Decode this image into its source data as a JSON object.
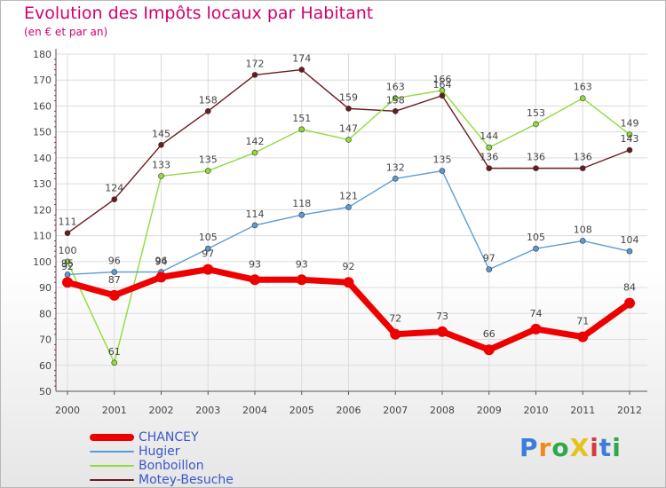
{
  "header": {
    "title": "Evolution des Impôts locaux par Habitant",
    "subtitle": "(en € et par an)"
  },
  "chart_data": {
    "type": "line",
    "title": "Evolution des Impôts locaux par Habitant",
    "subtitle": "(en € et par an)",
    "xlabel": "",
    "ylabel": "",
    "x": [
      "2000",
      "2001",
      "2002",
      "2003",
      "2004",
      "2005",
      "2006",
      "2007",
      "2008",
      "2009",
      "2010",
      "2011",
      "2012"
    ],
    "ylim": [
      50,
      180
    ],
    "yticks": [
      50,
      60,
      70,
      80,
      90,
      100,
      110,
      120,
      130,
      140,
      150,
      160,
      170,
      180
    ],
    "grid": true,
    "legend_position": "bottom-left",
    "series": [
      {
        "name": "Motey-Besuche",
        "color": "#6b1a1f",
        "values": [
          111,
          124,
          145,
          158,
          172,
          174,
          159,
          158,
          164,
          136,
          136,
          136,
          143
        ],
        "labels": [
          "111",
          "124",
          "145",
          "158",
          "172",
          "174",
          "159",
          "158",
          "164",
          "136",
          "136",
          "136",
          "143"
        ]
      },
      {
        "name": "Bonboillon",
        "color": "#8fdc3c",
        "values": [
          100,
          61,
          133,
          135,
          142,
          151,
          147,
          163,
          166,
          144,
          153,
          163,
          149
        ],
        "labels": [
          "100",
          "61",
          "133",
          "135",
          "142",
          "151",
          "147",
          "163",
          "166",
          "144",
          "153",
          "163",
          "149"
        ]
      },
      {
        "name": "Hugier",
        "color": "#5b9bd5",
        "values": [
          95,
          96,
          96,
          105,
          114,
          118,
          121,
          132,
          135,
          97,
          105,
          108,
          104
        ],
        "labels": [
          "95",
          "96",
          "96",
          "105",
          "114",
          "118",
          "121",
          "132",
          "135",
          "97",
          "105",
          "108",
          "104"
        ]
      },
      {
        "name": "CHANCEY",
        "color": "#ee0000",
        "values": [
          92,
          87,
          94,
          97,
          93,
          93,
          92,
          72,
          73,
          66,
          74,
          71,
          84
        ],
        "labels": [
          "92",
          "87",
          "94",
          "97",
          "93",
          "93",
          "92",
          "72",
          "73",
          "66",
          "74",
          "71",
          "84"
        ]
      }
    ]
  },
  "legend": [
    {
      "name": "CHANCEY",
      "color": "#ee0000"
    },
    {
      "name": "Hugier",
      "color": "#5b9bd5"
    },
    {
      "name": "Bonboillon",
      "color": "#8fdc3c"
    },
    {
      "name": "Motey-Besuche",
      "color": "#6b1a1f"
    }
  ],
  "logo": {
    "text": "ProXiti",
    "colors": [
      "#3b7dd8",
      "#f08a1c",
      "#2ea84a",
      "#e6c21a",
      "#d63a3a",
      "#3b7dd8",
      "#2ea84a"
    ]
  }
}
